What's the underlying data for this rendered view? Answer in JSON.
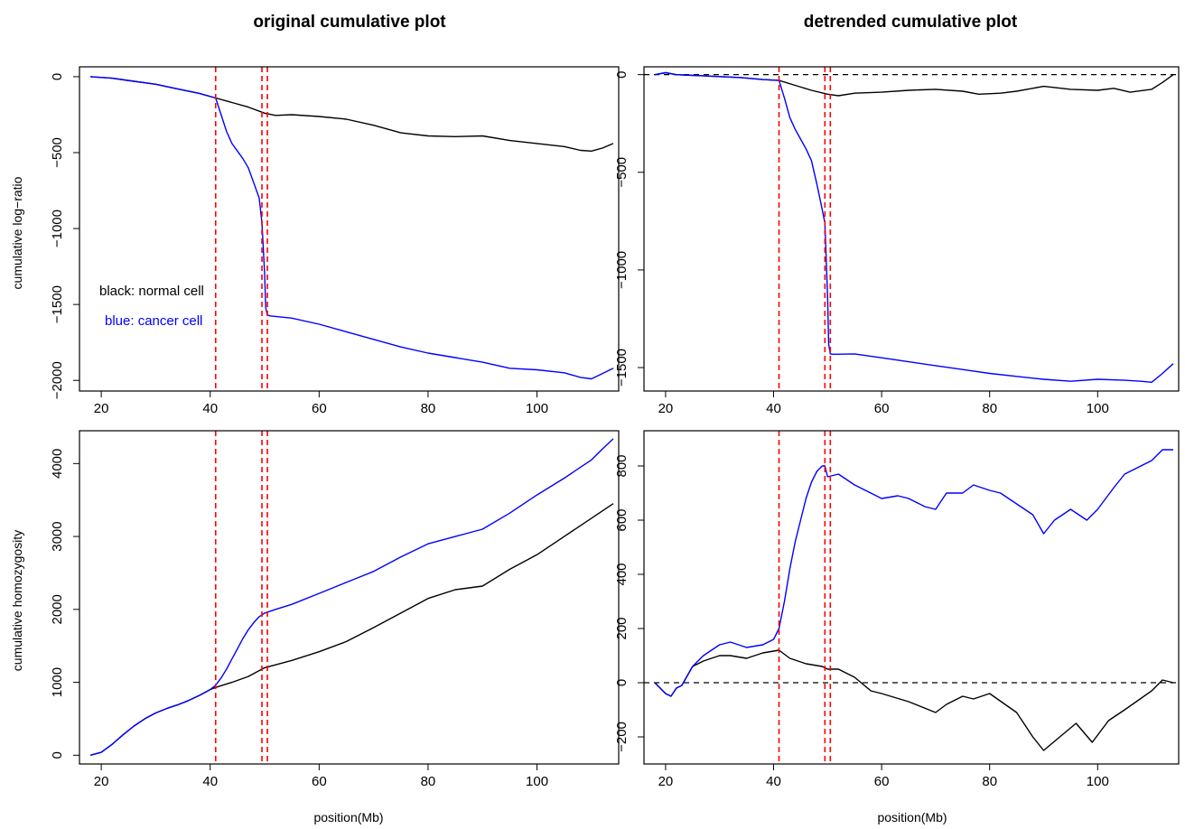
{
  "figure": {
    "col_titles": [
      "original cumulative plot",
      "detrended cumulative plot"
    ],
    "xlabel": "position(Mb)",
    "ylabel_top": "cumulative log−ratio",
    "ylabel_bottom": "cumulative homozygosity",
    "legend": {
      "black": "black: normal cell",
      "blue": "blue: cancer cell"
    }
  },
  "colors": {
    "normal": "#000000",
    "cancer": "#0000ff",
    "breakpoint": "#ff0000",
    "reference": "#000000"
  },
  "chart_data": [
    {
      "id": "orig-logratio",
      "type": "line",
      "title": "original cumulative plot",
      "xlabel": "",
      "ylabel": "cumulative log−ratio",
      "xlim": [
        16,
        115
      ],
      "ylim": [
        -2070,
        65
      ],
      "xticks": [
        20,
        40,
        60,
        80,
        100
      ],
      "yticks": [
        0,
        -500,
        -1000,
        -1500,
        -2000
      ],
      "yticklabels": [
        "0",
        "−500",
        "−1000",
        "−1500",
        "−2000"
      ],
      "vlines": [
        41,
        49.5,
        50.5
      ],
      "hline": null,
      "series": [
        {
          "name": "black: normal cell",
          "color": "#000000",
          "x": [
            18,
            22,
            26,
            30,
            34,
            38,
            41,
            44,
            47,
            50,
            52,
            55,
            60,
            65,
            70,
            75,
            80,
            85,
            90,
            95,
            100,
            105,
            108,
            110,
            112,
            114
          ],
          "y": [
            0,
            -10,
            -30,
            -50,
            -80,
            -110,
            -140,
            -170,
            -200,
            -240,
            -255,
            -250,
            -262,
            -280,
            -320,
            -370,
            -390,
            -395,
            -390,
            -420,
            -440,
            -460,
            -485,
            -490,
            -470,
            -440
          ]
        },
        {
          "name": "blue: cancer cell",
          "color": "#0000ff",
          "x": [
            18,
            22,
            26,
            30,
            34,
            38,
            41,
            42,
            43,
            44,
            45,
            46,
            47,
            48,
            49,
            49.5,
            50,
            50.2,
            50.5,
            51,
            55,
            60,
            65,
            70,
            75,
            80,
            85,
            90,
            95,
            100,
            105,
            108,
            110,
            112,
            114
          ],
          "y": [
            0,
            -10,
            -30,
            -50,
            -80,
            -110,
            -140,
            -250,
            -360,
            -440,
            -490,
            -540,
            -600,
            -700,
            -800,
            -960,
            -1300,
            -1520,
            -1570,
            -1575,
            -1590,
            -1630,
            -1680,
            -1730,
            -1780,
            -1820,
            -1850,
            -1880,
            -1920,
            -1930,
            -1950,
            -1980,
            -1990,
            -1955,
            -1920
          ]
        }
      ]
    },
    {
      "id": "detr-logratio",
      "type": "line",
      "title": "detrended cumulative plot",
      "xlabel": "",
      "ylabel": "",
      "xlim": [
        16,
        115
      ],
      "ylim": [
        -1620,
        40
      ],
      "xticks": [
        20,
        40,
        60,
        80,
        100
      ],
      "yticks": [
        0,
        -500,
        -1000,
        -1500
      ],
      "yticklabels": [
        "0",
        "−500",
        "−1000",
        "−1500"
      ],
      "vlines": [
        41,
        49.5,
        50.5
      ],
      "hline": 0,
      "series": [
        {
          "name": "",
          "color": "#000000",
          "x": [
            18,
            20,
            22,
            26,
            30,
            34,
            38,
            41,
            44,
            47,
            50,
            52,
            55,
            60,
            65,
            70,
            75,
            78,
            82,
            85,
            90,
            95,
            100,
            103,
            106,
            110,
            112,
            114
          ],
          "y": [
            0,
            10,
            0,
            -5,
            -10,
            -15,
            -25,
            -30,
            -55,
            -80,
            -100,
            -108,
            -95,
            -90,
            -80,
            -75,
            -85,
            -100,
            -95,
            -85,
            -60,
            -75,
            -80,
            -70,
            -90,
            -75,
            -40,
            0
          ]
        },
        {
          "name": "",
          "color": "#0000ff",
          "x": [
            18,
            20,
            22,
            26,
            30,
            34,
            38,
            41,
            42,
            43,
            44,
            45,
            46,
            47,
            48,
            49,
            49.5,
            50,
            50.2,
            50.5,
            51,
            55,
            60,
            65,
            70,
            75,
            80,
            85,
            90,
            95,
            100,
            105,
            108,
            110,
            112,
            114
          ],
          "y": [
            0,
            10,
            0,
            -5,
            -10,
            -15,
            -25,
            -30,
            -120,
            -220,
            -280,
            -330,
            -380,
            -440,
            -560,
            -690,
            -760,
            -1140,
            -1380,
            -1430,
            -1432,
            -1430,
            -1450,
            -1470,
            -1490,
            -1510,
            -1530,
            -1545,
            -1560,
            -1570,
            -1560,
            -1565,
            -1570,
            -1575,
            -1530,
            -1480
          ]
        }
      ]
    },
    {
      "id": "orig-homozygosity",
      "type": "line",
      "title": "",
      "xlabel": "position(Mb)",
      "ylabel": "cumulative homozygosity",
      "xlim": [
        16,
        115
      ],
      "ylim": [
        -120,
        4450
      ],
      "xticks": [
        20,
        40,
        60,
        80,
        100
      ],
      "yticks": [
        0,
        1000,
        2000,
        3000,
        4000
      ],
      "yticklabels": [
        "0",
        "1000",
        "2000",
        "3000",
        "4000"
      ],
      "vlines": [
        41,
        49.5,
        50.5
      ],
      "hline": null,
      "series": [
        {
          "name": "",
          "color": "#000000",
          "x": [
            18,
            20,
            22,
            24,
            26,
            28,
            30,
            32,
            34,
            36,
            38,
            40,
            41,
            44,
            47,
            50,
            52,
            55,
            60,
            65,
            70,
            75,
            80,
            85,
            90,
            95,
            100,
            105,
            110,
            112,
            114
          ],
          "y": [
            0,
            40,
            150,
            280,
            400,
            500,
            580,
            640,
            690,
            750,
            820,
            900,
            930,
            1000,
            1080,
            1200,
            1240,
            1300,
            1420,
            1560,
            1750,
            1950,
            2150,
            2270,
            2320,
            2550,
            2750,
            3000,
            3250,
            3350,
            3450
          ]
        },
        {
          "name": "",
          "color": "#0000ff",
          "x": [
            18,
            20,
            22,
            24,
            26,
            28,
            30,
            32,
            34,
            36,
            38,
            40,
            41,
            42,
            43,
            44,
            45,
            46,
            47,
            48,
            49,
            50,
            52,
            55,
            60,
            65,
            70,
            75,
            80,
            85,
            90,
            95,
            100,
            105,
            110,
            112,
            114
          ],
          "y": [
            0,
            40,
            150,
            280,
            400,
            500,
            580,
            640,
            690,
            750,
            820,
            900,
            960,
            1060,
            1180,
            1320,
            1460,
            1600,
            1720,
            1820,
            1900,
            1950,
            2000,
            2070,
            2220,
            2370,
            2520,
            2720,
            2900,
            3000,
            3100,
            3320,
            3570,
            3800,
            4050,
            4200,
            4340
          ]
        }
      ]
    },
    {
      "id": "detr-homozygosity",
      "type": "line",
      "title": "",
      "xlabel": "position(Mb)",
      "ylabel": "",
      "xlim": [
        16,
        115
      ],
      "ylim": [
        -300,
        930
      ],
      "xticks": [
        20,
        40,
        60,
        80,
        100
      ],
      "yticks": [
        -200,
        0,
        200,
        400,
        600,
        800
      ],
      "yticklabels": [
        "−200",
        "0",
        "200",
        "400",
        "600",
        "800"
      ],
      "vlines": [
        41,
        49.5,
        50.5
      ],
      "hline": 0,
      "series": [
        {
          "name": "",
          "color": "#000000",
          "x": [
            18,
            20,
            21,
            22,
            23,
            25,
            27,
            30,
            32,
            35,
            38,
            41,
            43,
            46,
            49,
            50,
            52,
            55,
            58,
            60,
            65,
            70,
            72,
            75,
            77,
            80,
            85,
            88,
            90,
            93,
            96,
            99,
            102,
            105,
            110,
            112,
            114
          ],
          "y": [
            0,
            -40,
            -50,
            -20,
            -10,
            60,
            80,
            100,
            100,
            90,
            110,
            120,
            90,
            70,
            60,
            50,
            50,
            20,
            -30,
            -40,
            -70,
            -110,
            -80,
            -50,
            -60,
            -40,
            -110,
            -200,
            -250,
            -200,
            -150,
            -220,
            -140,
            -100,
            -30,
            10,
            0
          ]
        },
        {
          "name": "",
          "color": "#0000ff",
          "x": [
            18,
            20,
            21,
            22,
            23,
            25,
            27,
            30,
            32,
            35,
            38,
            40,
            41,
            42,
            43,
            44,
            45,
            46,
            47,
            48,
            49,
            49.5,
            50,
            52,
            55,
            58,
            60,
            63,
            65,
            68,
            70,
            72,
            75,
            77,
            80,
            82,
            85,
            88,
            90,
            92,
            95,
            98,
            100,
            103,
            105,
            110,
            112,
            114
          ],
          "y": [
            0,
            -40,
            -50,
            -20,
            -10,
            60,
            100,
            140,
            150,
            130,
            140,
            160,
            200,
            300,
            420,
            520,
            600,
            680,
            740,
            780,
            800,
            800,
            760,
            770,
            730,
            700,
            680,
            690,
            680,
            650,
            640,
            700,
            700,
            730,
            710,
            700,
            660,
            620,
            550,
            600,
            640,
            600,
            640,
            720,
            770,
            820,
            860,
            860
          ]
        }
      ]
    }
  ]
}
